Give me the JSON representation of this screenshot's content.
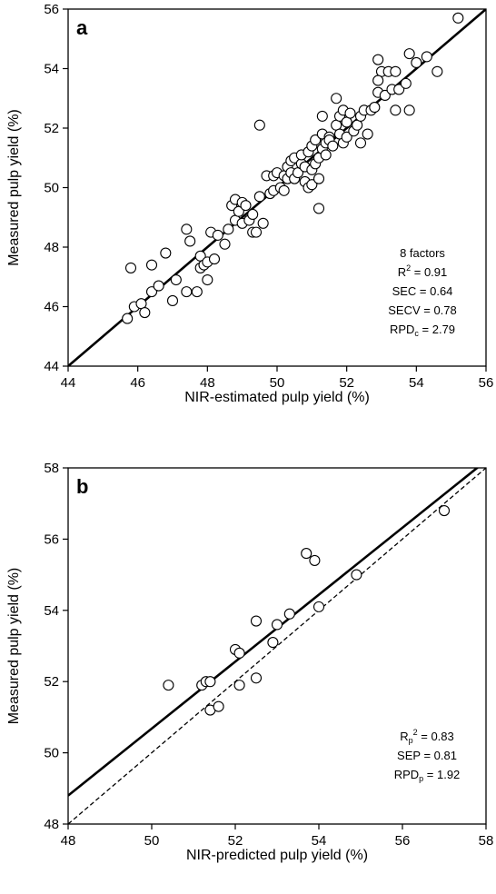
{
  "figure": {
    "colors": {
      "axis": "#000000",
      "marker_edge": "#000000",
      "marker_fill": "#ffffff",
      "line": "#000000"
    }
  },
  "chart_data": [
    {
      "type": "scatter",
      "panel_label": "a",
      "xlabel": "NIR-estimated pulp yield (%)",
      "ylabel": "Measured pulp yield (%)",
      "xlim": [
        44,
        56
      ],
      "ylim": [
        44,
        56
      ],
      "xticks": [
        44,
        46,
        48,
        50,
        52,
        54,
        56
      ],
      "yticks": [
        44,
        46,
        48,
        50,
        52,
        54,
        56
      ],
      "grid": false,
      "lines": [
        {
          "style": "solid",
          "x": [
            44,
            56
          ],
          "y": [
            44,
            56
          ]
        }
      ],
      "annotation": [
        {
          "label": "8 factors",
          "symbol": "",
          "sub": "",
          "sup": "",
          "value": ""
        },
        {
          "label": "",
          "symbol": "R",
          "sub": "",
          "sup": "2",
          "value": " = 0.91"
        },
        {
          "label": "",
          "symbol": "SEC",
          "sub": "",
          "sup": "",
          "value": " = 0.64"
        },
        {
          "label": "",
          "symbol": "SECV",
          "sub": "",
          "sup": "",
          "value": " = 0.78"
        },
        {
          "label": "",
          "symbol": "RPD",
          "sub": "c",
          "sup": "",
          "value": " = 2.79"
        }
      ],
      "points": [
        [
          45.7,
          45.6
        ],
        [
          45.8,
          47.3
        ],
        [
          45.9,
          46.0
        ],
        [
          46.1,
          46.1
        ],
        [
          46.2,
          45.8
        ],
        [
          46.4,
          46.5
        ],
        [
          46.4,
          47.4
        ],
        [
          46.6,
          46.7
        ],
        [
          46.8,
          47.8
        ],
        [
          47.0,
          46.2
        ],
        [
          47.1,
          46.9
        ],
        [
          47.4,
          46.5
        ],
        [
          47.4,
          48.6
        ],
        [
          47.5,
          48.2
        ],
        [
          47.7,
          46.5
        ],
        [
          47.8,
          47.3
        ],
        [
          47.8,
          47.7
        ],
        [
          47.9,
          47.4
        ],
        [
          48.0,
          47.5
        ],
        [
          48.0,
          46.9
        ],
        [
          48.1,
          48.5
        ],
        [
          48.2,
          47.6
        ],
        [
          48.3,
          48.4
        ],
        [
          48.5,
          48.1
        ],
        [
          48.6,
          48.6
        ],
        [
          48.7,
          49.4
        ],
        [
          48.8,
          48.9
        ],
        [
          48.8,
          49.6
        ],
        [
          48.9,
          49.2
        ],
        [
          49.0,
          48.8
        ],
        [
          49.0,
          49.5
        ],
        [
          49.1,
          49.4
        ],
        [
          49.2,
          48.9
        ],
        [
          49.3,
          49.1
        ],
        [
          49.3,
          48.5
        ],
        [
          49.4,
          48.5
        ],
        [
          49.5,
          49.7
        ],
        [
          49.5,
          52.1
        ],
        [
          49.6,
          48.8
        ],
        [
          49.7,
          50.4
        ],
        [
          49.8,
          49.8
        ],
        [
          49.9,
          50.4
        ],
        [
          49.9,
          49.9
        ],
        [
          50.0,
          50.5
        ],
        [
          50.1,
          50.0
        ],
        [
          50.2,
          50.4
        ],
        [
          50.2,
          49.9
        ],
        [
          50.3,
          50.7
        ],
        [
          50.3,
          50.3
        ],
        [
          50.4,
          50.9
        ],
        [
          50.4,
          50.5
        ],
        [
          50.5,
          51.0
        ],
        [
          50.5,
          50.3
        ],
        [
          50.6,
          50.5
        ],
        [
          50.7,
          50.8
        ],
        [
          50.7,
          51.1
        ],
        [
          50.8,
          50.2
        ],
        [
          50.8,
          50.7
        ],
        [
          50.9,
          51.2
        ],
        [
          50.9,
          50.0
        ],
        [
          51.0,
          50.1
        ],
        [
          51.0,
          51.4
        ],
        [
          51.0,
          50.6
        ],
        [
          51.1,
          51.6
        ],
        [
          51.1,
          50.8
        ],
        [
          51.2,
          50.3
        ],
        [
          51.2,
          51.0
        ],
        [
          51.2,
          49.3
        ],
        [
          51.3,
          51.8
        ],
        [
          51.3,
          51.3
        ],
        [
          51.3,
          52.4
        ],
        [
          51.4,
          51.5
        ],
        [
          51.4,
          51.1
        ],
        [
          51.5,
          51.7
        ],
        [
          51.5,
          51.6
        ],
        [
          51.6,
          51.4
        ],
        [
          51.7,
          52.1
        ],
        [
          51.7,
          53.0
        ],
        [
          51.8,
          52.4
        ],
        [
          51.8,
          51.8
        ],
        [
          51.9,
          52.6
        ],
        [
          51.9,
          51.5
        ],
        [
          52.0,
          52.2
        ],
        [
          52.0,
          51.7
        ],
        [
          52.1,
          52.5
        ],
        [
          52.2,
          51.9
        ],
        [
          52.3,
          52.1
        ],
        [
          52.4,
          51.5
        ],
        [
          52.4,
          52.4
        ],
        [
          52.5,
          52.6
        ],
        [
          52.6,
          51.8
        ],
        [
          52.7,
          52.6
        ],
        [
          52.8,
          52.7
        ],
        [
          52.9,
          53.2
        ],
        [
          52.9,
          54.3
        ],
        [
          53.0,
          53.9
        ],
        [
          53.1,
          53.1
        ],
        [
          53.2,
          53.9
        ],
        [
          53.3,
          53.3
        ],
        [
          53.4,
          52.6
        ],
        [
          53.4,
          53.9
        ],
        [
          53.5,
          53.3
        ],
        [
          53.7,
          53.5
        ],
        [
          53.8,
          52.6
        ],
        [
          53.8,
          54.5
        ],
        [
          54.0,
          54.2
        ],
        [
          54.3,
          54.4
        ],
        [
          54.6,
          53.9
        ],
        [
          55.2,
          55.7
        ],
        [
          52.9,
          53.6
        ]
      ]
    },
    {
      "type": "scatter",
      "panel_label": "b",
      "xlabel": "NIR-predicted pulp yield (%)",
      "ylabel": "Measured pulp yield (%)",
      "xlim": [
        48,
        58
      ],
      "ylim": [
        48,
        58
      ],
      "xticks": [
        48,
        50,
        52,
        54,
        56,
        58
      ],
      "yticks": [
        48,
        50,
        52,
        54,
        56,
        58
      ],
      "grid": false,
      "lines": [
        {
          "style": "solid",
          "x": [
            48,
            58
          ],
          "y": [
            48.8,
            58.2
          ]
        },
        {
          "style": "dashed",
          "x": [
            48,
            58
          ],
          "y": [
            48,
            58
          ]
        }
      ],
      "annotation": [
        {
          "label": "",
          "symbol": "R",
          "sub": "p",
          "sup": "2",
          "value": " = 0.83"
        },
        {
          "label": "",
          "symbol": "SEP",
          "sub": "",
          "sup": "",
          "value": " = 0.81"
        },
        {
          "label": "",
          "symbol": "RPD",
          "sub": "p",
          "sup": "",
          "value": " = 1.92"
        }
      ],
      "points": [
        [
          50.4,
          51.9
        ],
        [
          51.2,
          51.9
        ],
        [
          51.3,
          52.0
        ],
        [
          51.4,
          51.2
        ],
        [
          51.4,
          52.0
        ],
        [
          51.6,
          51.3
        ],
        [
          52.0,
          52.9
        ],
        [
          52.1,
          52.8
        ],
        [
          52.1,
          51.9
        ],
        [
          52.5,
          53.7
        ],
        [
          52.5,
          52.1
        ],
        [
          52.9,
          53.1
        ],
        [
          53.0,
          53.6
        ],
        [
          53.3,
          53.9
        ],
        [
          53.7,
          55.6
        ],
        [
          53.9,
          55.4
        ],
        [
          54.0,
          54.1
        ],
        [
          54.9,
          55.0
        ],
        [
          57.0,
          56.8
        ]
      ]
    }
  ]
}
